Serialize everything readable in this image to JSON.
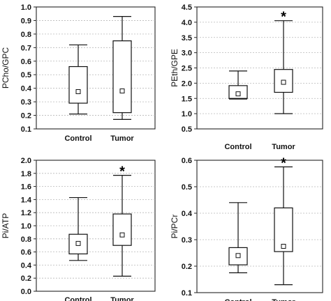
{
  "chart_data": [
    {
      "type": "box",
      "ylabel": "PCho/GPC",
      "ylim": [
        0.1,
        1.0
      ],
      "yticks": [
        "0.1",
        "0.2",
        "0.3",
        "0.4",
        "0.5",
        "0.6",
        "0.7",
        "0.8",
        "0.9",
        "1.0"
      ],
      "grid": true,
      "categories": [
        "Control",
        "Tumor"
      ],
      "boxes": [
        {
          "whisker_low": 0.21,
          "q1": 0.29,
          "median": 0.375,
          "q3": 0.56,
          "whisker_high": 0.72,
          "marker": ""
        },
        {
          "whisker_low": 0.17,
          "q1": 0.22,
          "median": 0.38,
          "q3": 0.75,
          "whisker_high": 0.93,
          "marker": ""
        }
      ]
    },
    {
      "type": "box",
      "ylabel": "PEth/GPE",
      "ylim": [
        0.5,
        4.5
      ],
      "yticks": [
        "0.5",
        "1.0",
        "1.5",
        "2.0",
        "2.5",
        "3.0",
        "3.5",
        "4.0",
        "4.5"
      ],
      "grid": true,
      "categories": [
        "Control",
        "Tumor"
      ],
      "boxes": [
        {
          "whisker_low": 1.48,
          "q1": 1.5,
          "median": 1.65,
          "q3": 1.92,
          "whisker_high": 2.4,
          "marker": ""
        },
        {
          "whisker_low": 1.0,
          "q1": 1.7,
          "median": 2.03,
          "q3": 2.45,
          "whisker_high": 4.05,
          "marker": "*"
        }
      ]
    },
    {
      "type": "box",
      "ylabel": "Pi/ATP",
      "ylim": [
        0.0,
        2.0
      ],
      "yticks": [
        "0.0",
        "0.2",
        "0.4",
        "0.6",
        "0.8",
        "1.0",
        "1.2",
        "1.4",
        "1.6",
        "1.8",
        "2.0"
      ],
      "grid": true,
      "categories": [
        "Control",
        "Tumor"
      ],
      "boxes": [
        {
          "whisker_low": 0.47,
          "q1": 0.57,
          "median": 0.73,
          "q3": 0.87,
          "whisker_high": 1.43,
          "marker": ""
        },
        {
          "whisker_low": 0.23,
          "q1": 0.7,
          "median": 0.86,
          "q3": 1.18,
          "whisker_high": 1.77,
          "marker": "*"
        }
      ]
    },
    {
      "type": "box",
      "ylabel": "Pi/PCr",
      "ylim": [
        0.1,
        0.6
      ],
      "yticks": [
        "0.1",
        "0.2",
        "0.3",
        "0.4",
        "0.5",
        "0.6"
      ],
      "grid": true,
      "categories": [
        "Control",
        "Tumor"
      ],
      "boxes": [
        {
          "whisker_low": 0.175,
          "q1": 0.205,
          "median": 0.24,
          "q3": 0.27,
          "whisker_high": 0.44,
          "marker": ""
        },
        {
          "whisker_low": 0.13,
          "q1": 0.255,
          "median": 0.275,
          "q3": 0.42,
          "whisker_high": 0.575,
          "marker": "*"
        }
      ]
    }
  ]
}
